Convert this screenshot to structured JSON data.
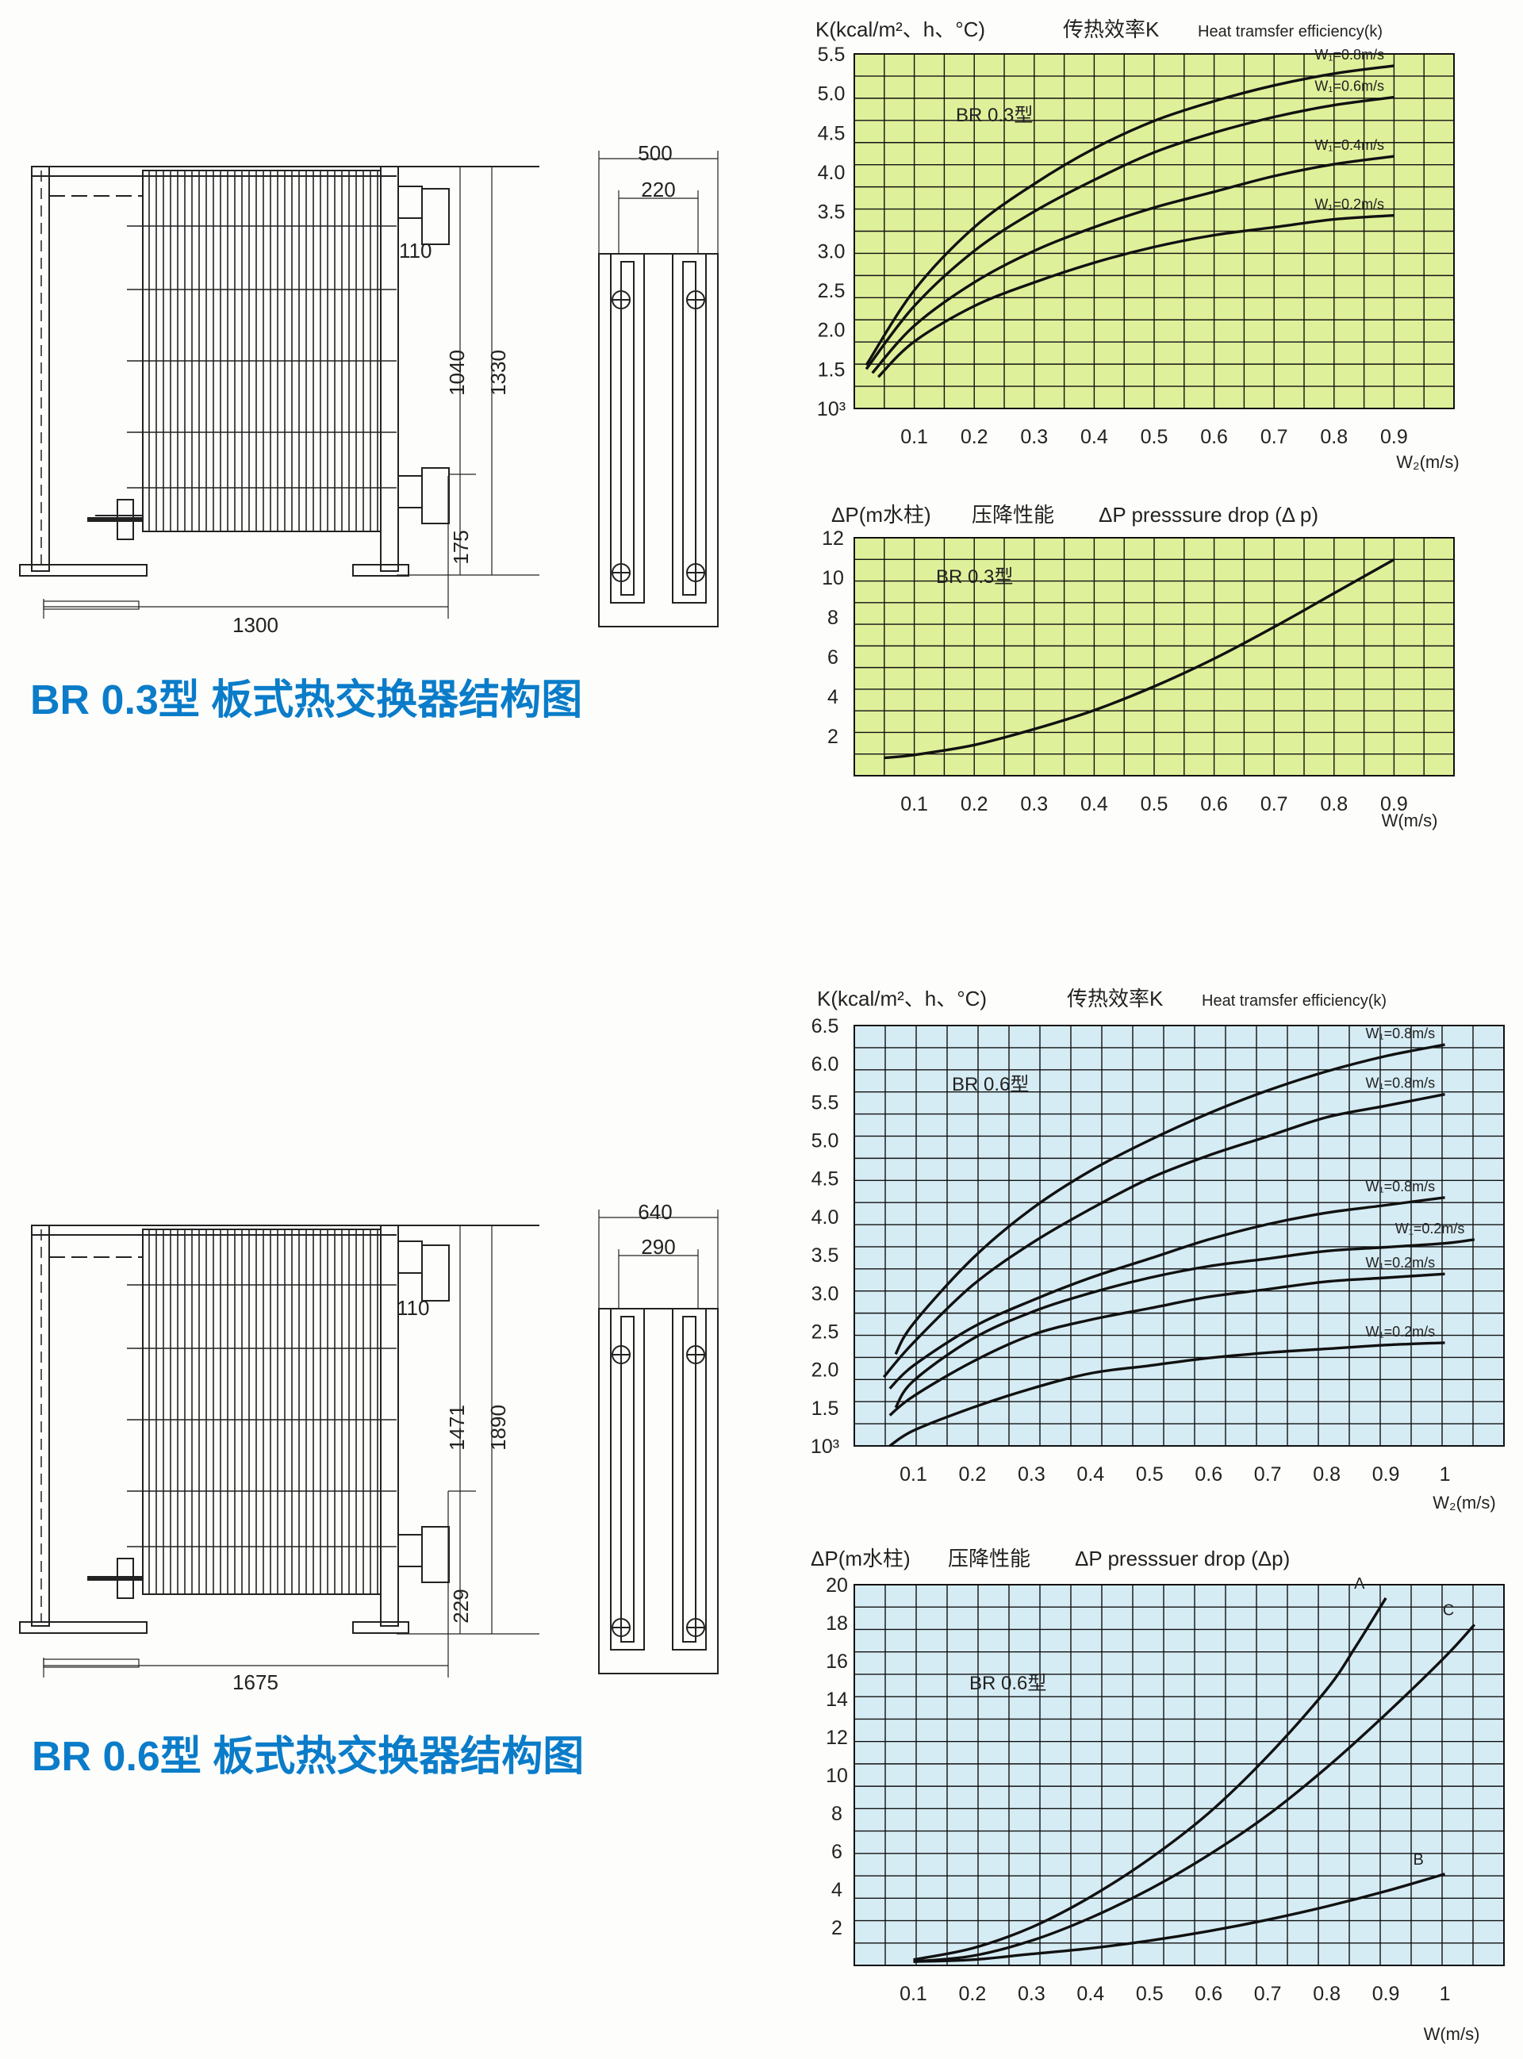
{
  "colors": {
    "green_bg": "#dff09a",
    "blue_bg": "#d6ecf4",
    "title_blue": "#0a7cc9",
    "grid": "#111111"
  },
  "sections": [
    {
      "structure": {
        "title": "BR 0.3型  板式热交换器结构图",
        "dims": {
          "width_top": "500",
          "width_inner": "220",
          "pipe": "110",
          "h_inner": "1040",
          "h_total": "1330",
          "h_bottom": "175",
          "length": "1300"
        }
      },
      "k_chart": {
        "bg": "green",
        "header": {
          "ylabel": "K(kcal/m²、h、°C)",
          "cn": "传热效率K",
          "en": "Heat tramsfer efficiency(k)"
        },
        "inner_label": "BR 0.3型",
        "xlabel": "W₂(m/s)"
      },
      "p_chart": {
        "bg": "green",
        "header": {
          "ylabel": "ΔP(m水柱)",
          "cn": "压降性能",
          "en": "ΔP  presssure drop (Δ p)"
        },
        "inner_label": "BR 0.3型",
        "xlabel": "W(m/s)"
      }
    },
    {
      "structure": {
        "title": "BR 0.6型 板式热交换器结构图",
        "dims": {
          "width_top": "640",
          "width_inner": "290",
          "pipe": "110",
          "h_inner": "1471",
          "h_total": "1890",
          "h_bottom": "229",
          "length": "1675"
        }
      },
      "k_chart": {
        "bg": "blue",
        "header": {
          "ylabel": "K(kcal/m²、h、°C)",
          "cn": "传热效率K",
          "en": "Heat tramsfer efficiency(k)"
        },
        "inner_label": "BR 0.6型",
        "xlabel": "W₂(m/s)"
      },
      "p_chart": {
        "bg": "blue",
        "header": {
          "ylabel": "ΔP(m水柱)",
          "cn": "压降性能",
          "en": "ΔP  presssuer drop (Δp)"
        },
        "inner_label": "BR 0.6型",
        "xlabel": "W(m/s)"
      }
    }
  ],
  "chart_data": [
    {
      "type": "line",
      "xticks": [
        "0.1",
        "0.2",
        "0.3",
        "0.4",
        "0.5",
        "0.6",
        "0.7",
        "0.8",
        "0.9"
      ],
      "yticks": [
        "10³",
        "1.5",
        "2.0",
        "2.5",
        "3.0",
        "3.5",
        "4.0",
        "4.5",
        "5.0",
        "5.5"
      ],
      "xlim": [
        0,
        1.0
      ],
      "ylim": [
        1.0,
        5.5
      ],
      "series": [
        {
          "name": "W₁=0.8m/s",
          "x": [
            0.02,
            0.1,
            0.2,
            0.3,
            0.4,
            0.5,
            0.6,
            0.7,
            0.8,
            0.9
          ],
          "y": [
            1.55,
            2.5,
            3.3,
            3.85,
            4.3,
            4.65,
            4.9,
            5.1,
            5.25,
            5.35
          ]
        },
        {
          "name": "W₁=0.6m/s",
          "x": [
            0.02,
            0.1,
            0.2,
            0.3,
            0.4,
            0.5,
            0.6,
            0.7,
            0.8,
            0.9
          ],
          "y": [
            1.5,
            2.3,
            3.0,
            3.5,
            3.9,
            4.25,
            4.5,
            4.7,
            4.85,
            4.95
          ]
        },
        {
          "name": "W₁=0.4m/s",
          "x": [
            0.03,
            0.1,
            0.2,
            0.3,
            0.4,
            0.5,
            0.6,
            0.7,
            0.8,
            0.9
          ],
          "y": [
            1.45,
            2.05,
            2.6,
            3.0,
            3.3,
            3.55,
            3.75,
            3.95,
            4.1,
            4.2
          ]
        },
        {
          "name": "W₁=0.2m/s",
          "x": [
            0.04,
            0.1,
            0.2,
            0.3,
            0.4,
            0.5,
            0.6,
            0.7,
            0.8,
            0.9
          ],
          "y": [
            1.4,
            1.85,
            2.3,
            2.6,
            2.85,
            3.05,
            3.2,
            3.3,
            3.4,
            3.45
          ]
        }
      ]
    },
    {
      "type": "line",
      "xticks": [
        "0.1",
        "0.2",
        "0.3",
        "0.4",
        "0.5",
        "0.6",
        "0.7",
        "0.8",
        "0.9"
      ],
      "yticks": [
        "2",
        "4",
        "6",
        "8",
        "10",
        "12"
      ],
      "xlim": [
        0,
        1.0
      ],
      "ylim": [
        0,
        12
      ],
      "series": [
        {
          "x": [
            0.05,
            0.1,
            0.2,
            0.3,
            0.4,
            0.5,
            0.6,
            0.7,
            0.8,
            0.9
          ],
          "y": [
            0.9,
            1.05,
            1.55,
            2.35,
            3.3,
            4.5,
            5.9,
            7.5,
            9.2,
            10.9
          ]
        }
      ]
    },
    {
      "type": "line",
      "xticks": [
        "0.1",
        "0.2",
        "0.3",
        "0.4",
        "0.5",
        "0.6",
        "0.7",
        "0.8",
        "0.9",
        "1"
      ],
      "yticks": [
        "10³",
        "1.5",
        "2.0",
        "2.5",
        "3.0",
        "3.5",
        "4.0",
        "4.5",
        "5.0",
        "5.5",
        "6.0",
        "6.5"
      ],
      "xlim": [
        0,
        1.1
      ],
      "ylim": [
        1.0,
        6.5
      ],
      "series": [
        {
          "name": "W₁=0.8m/s",
          "x": [
            0.07,
            0.1,
            0.2,
            0.3,
            0.4,
            0.5,
            0.6,
            0.7,
            0.8,
            0.9,
            1.0
          ],
          "y": [
            2.2,
            2.6,
            3.45,
            4.1,
            4.6,
            5.0,
            5.35,
            5.65,
            5.9,
            6.1,
            6.25
          ]
        },
        {
          "name": "W₁=0.8m/s",
          "x": [
            0.05,
            0.1,
            0.2,
            0.3,
            0.4,
            0.5,
            0.6,
            0.7,
            0.8,
            0.9,
            1.0
          ],
          "y": [
            1.9,
            2.35,
            3.1,
            3.65,
            4.1,
            4.5,
            4.8,
            5.05,
            5.3,
            5.45,
            5.6
          ]
        },
        {
          "name": "W₁=0.8m/s",
          "x": [
            0.06,
            0.1,
            0.2,
            0.3,
            0.4,
            0.5,
            0.6,
            0.7,
            0.8,
            0.9,
            1.0
          ],
          "y": [
            1.75,
            2.05,
            2.55,
            2.9,
            3.2,
            3.45,
            3.7,
            3.9,
            4.05,
            4.15,
            4.25
          ]
        },
        {
          "name": "W₁=0.2m/s",
          "x": [
            0.07,
            0.1,
            0.2,
            0.3,
            0.4,
            0.5,
            0.6,
            0.7,
            0.8,
            0.9,
            1.0,
            1.05
          ],
          "y": [
            1.5,
            1.85,
            2.4,
            2.75,
            3.0,
            3.2,
            3.35,
            3.45,
            3.55,
            3.6,
            3.65,
            3.7
          ]
        },
        {
          "name": "W₁=0.2m/s",
          "x": [
            0.06,
            0.1,
            0.2,
            0.3,
            0.4,
            0.5,
            0.6,
            0.7,
            0.8,
            0.9,
            1.0
          ],
          "y": [
            1.4,
            1.65,
            2.1,
            2.45,
            2.65,
            2.8,
            2.95,
            3.05,
            3.15,
            3.2,
            3.25
          ]
        },
        {
          "name": "W₁=0.2m/s",
          "x": [
            0.06,
            0.1,
            0.2,
            0.3,
            0.4,
            0.5,
            0.6,
            0.7,
            0.8,
            0.9,
            1.0
          ],
          "y": [
            1.0,
            1.2,
            1.5,
            1.75,
            1.95,
            2.05,
            2.15,
            2.22,
            2.27,
            2.32,
            2.35
          ]
        }
      ]
    },
    {
      "type": "line",
      "xticks": [
        "0.1",
        "0.2",
        "0.3",
        "0.4",
        "0.5",
        "0.6",
        "0.7",
        "0.8",
        "0.9",
        "1"
      ],
      "yticks": [
        "2",
        "4",
        "6",
        "8",
        "10",
        "12",
        "14",
        "16",
        "18",
        "20"
      ],
      "xlim": [
        0,
        1.1
      ],
      "ylim": [
        0,
        20
      ],
      "series": [
        {
          "name": "A",
          "x": [
            0.1,
            0.2,
            0.3,
            0.4,
            0.5,
            0.6,
            0.7,
            0.8,
            0.85,
            0.9
          ],
          "y": [
            0.3,
            0.9,
            2.0,
            3.6,
            5.6,
            8.0,
            11.0,
            14.5,
            16.8,
            19.3
          ]
        },
        {
          "name": "C",
          "x": [
            0.1,
            0.2,
            0.3,
            0.4,
            0.5,
            0.6,
            0.7,
            0.8,
            0.9,
            1.0,
            1.05
          ],
          "y": [
            0.2,
            0.5,
            1.3,
            2.5,
            4.0,
            5.8,
            7.9,
            10.4,
            13.2,
            16.2,
            17.9
          ]
        },
        {
          "name": "B",
          "x": [
            0.1,
            0.2,
            0.3,
            0.4,
            0.5,
            0.6,
            0.7,
            0.8,
            0.9,
            1.0
          ],
          "y": [
            0.2,
            0.3,
            0.6,
            0.9,
            1.3,
            1.8,
            2.4,
            3.1,
            3.9,
            4.8
          ]
        }
      ]
    }
  ]
}
